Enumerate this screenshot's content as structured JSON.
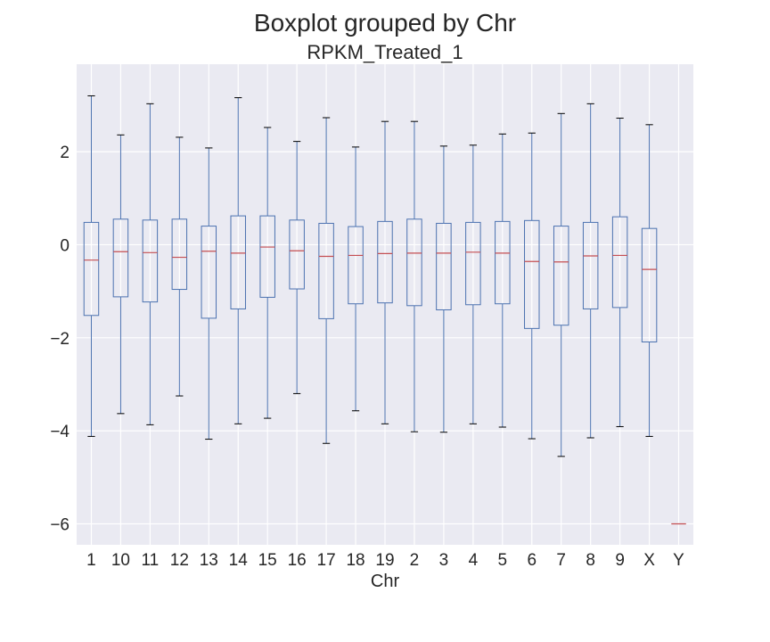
{
  "chart_data": {
    "type": "boxplot",
    "suptitle": "Boxplot grouped by Chr",
    "title": "RPKM_Treated_1",
    "xlabel": "Chr",
    "ylabel": "",
    "ylim": [
      -6.45,
      3.88
    ],
    "yticks": [
      2,
      0,
      -2,
      -4,
      -6
    ],
    "ytick_labels": [
      "2",
      "0",
      "−2",
      "−4",
      "−6"
    ],
    "grid": true,
    "colors": {
      "box": "#4c72b0",
      "median": "#c44e52",
      "whisker_cap": "#000000",
      "background": "#eaeaf2",
      "grid": "#ffffff"
    },
    "categories": [
      "1",
      "10",
      "11",
      "12",
      "13",
      "14",
      "15",
      "16",
      "17",
      "18",
      "19",
      "2",
      "3",
      "4",
      "5",
      "6",
      "7",
      "8",
      "9",
      "X",
      "Y"
    ],
    "boxes": [
      {
        "whislo": -4.12,
        "q1": -1.52,
        "med": -0.33,
        "q3": 0.48,
        "whishi": 3.2
      },
      {
        "whislo": -3.63,
        "q1": -1.12,
        "med": -0.15,
        "q3": 0.55,
        "whishi": 2.36
      },
      {
        "whislo": -3.87,
        "q1": -1.23,
        "med": -0.17,
        "q3": 0.53,
        "whishi": 3.03
      },
      {
        "whislo": -3.25,
        "q1": -0.96,
        "med": -0.27,
        "q3": 0.55,
        "whishi": 2.31
      },
      {
        "whislo": -4.18,
        "q1": -1.58,
        "med": -0.14,
        "q3": 0.4,
        "whishi": 2.08
      },
      {
        "whislo": -3.85,
        "q1": -1.38,
        "med": -0.18,
        "q3": 0.62,
        "whishi": 3.16
      },
      {
        "whislo": -3.73,
        "q1": -1.13,
        "med": -0.05,
        "q3": 0.62,
        "whishi": 2.52
      },
      {
        "whislo": -3.2,
        "q1": -0.95,
        "med": -0.13,
        "q3": 0.53,
        "whishi": 2.22
      },
      {
        "whislo": -4.27,
        "q1": -1.59,
        "med": -0.25,
        "q3": 0.46,
        "whishi": 2.73
      },
      {
        "whislo": -3.57,
        "q1": -1.27,
        "med": -0.23,
        "q3": 0.39,
        "whishi": 2.1
      },
      {
        "whislo": -3.85,
        "q1": -1.25,
        "med": -0.19,
        "q3": 0.5,
        "whishi": 2.65
      },
      {
        "whislo": -4.02,
        "q1": -1.31,
        "med": -0.18,
        "q3": 0.55,
        "whishi": 2.65
      },
      {
        "whislo": -4.03,
        "q1": -1.4,
        "med": -0.18,
        "q3": 0.46,
        "whishi": 2.12
      },
      {
        "whislo": -3.85,
        "q1": -1.29,
        "med": -0.16,
        "q3": 0.48,
        "whishi": 2.14
      },
      {
        "whislo": -3.92,
        "q1": -1.27,
        "med": -0.18,
        "q3": 0.5,
        "whishi": 2.38
      },
      {
        "whislo": -4.17,
        "q1": -1.8,
        "med": -0.36,
        "q3": 0.52,
        "whishi": 2.4
      },
      {
        "whislo": -4.55,
        "q1": -1.73,
        "med": -0.37,
        "q3": 0.4,
        "whishi": 2.82
      },
      {
        "whislo": -4.15,
        "q1": -1.38,
        "med": -0.24,
        "q3": 0.48,
        "whishi": 3.03
      },
      {
        "whislo": -3.91,
        "q1": -1.35,
        "med": -0.23,
        "q3": 0.6,
        "whishi": 2.72
      },
      {
        "whislo": -4.12,
        "q1": -2.09,
        "med": -0.53,
        "q3": 0.35,
        "whishi": 2.58
      },
      {
        "whislo": -6.0,
        "q1": -6.0,
        "med": -6.0,
        "q3": -6.0,
        "whishi": -6.0
      }
    ]
  }
}
